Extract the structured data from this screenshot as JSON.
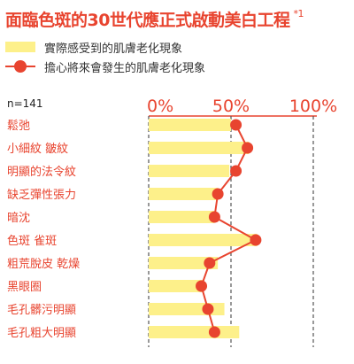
{
  "title": "面臨色斑的30世代應正式啟動美白工程",
  "title_note": "*1",
  "sample_label": "n=141",
  "colors": {
    "accent": "#e8442f",
    "bar": "#fdf08a",
    "line": "#e8442f",
    "grid": "#555555",
    "axis": "#e8442f"
  },
  "chart_data": {
    "type": "bar",
    "xlim": [
      0,
      100
    ],
    "xticks": [
      "0%",
      "50%",
      "100%"
    ],
    "tick_values": [
      0,
      50,
      100
    ],
    "legend_placement": "top-left",
    "categories": [
      "鬆弛",
      "小細紋 皺紋",
      "明顯的法令紋",
      "缺乏彈性張力",
      "暗沈",
      "色斑 雀斑",
      "粗荒脫皮 乾燥",
      "黑眼圈",
      "毛孔髒污明顯",
      "毛孔粗大明顯"
    ],
    "series": [
      {
        "name": "實際感受到的肌膚老化現象",
        "kind": "bar",
        "values": [
          50,
          61,
          49,
          42,
          40,
          66,
          42,
          33,
          46,
          55
        ]
      },
      {
        "name": "擔心將來會發生的肌膚老化現象",
        "kind": "line",
        "values": [
          53,
          60,
          53,
          42,
          40,
          65,
          37,
          32,
          36,
          40
        ]
      }
    ]
  }
}
